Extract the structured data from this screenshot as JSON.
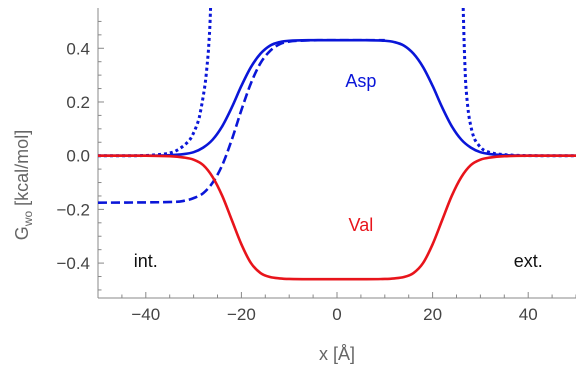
{
  "chart_data": {
    "type": "line",
    "xlabel": "x [Å]",
    "ylabel_main": "G",
    "ylabel_sub": "wo",
    "ylabel_rest": " [kcal/mol]",
    "xlim": [
      -50,
      50
    ],
    "ylim": [
      -0.53,
      0.55
    ],
    "xticks": [
      -40,
      -20,
      0,
      20,
      40
    ],
    "yticks": [
      -0.4,
      -0.2,
      0.0,
      0.2,
      0.4
    ],
    "ytick_labels": [
      "−0.4",
      "−0.2",
      "0.0",
      "0.2",
      "0.4"
    ],
    "xtick_labels": [
      "−40",
      "−20",
      "0",
      "20",
      "40"
    ],
    "colors": {
      "asp": "#0a16d8",
      "val": "#e8141b",
      "axis": "#888888"
    },
    "series": [
      {
        "key": "asp_solid",
        "style": "solid",
        "color": "#0a16d8",
        "x": [
          -50,
          -40,
          -35,
          -32,
          -30,
          -28,
          -26,
          -24,
          -22,
          -20,
          -18,
          -16,
          -14,
          -12,
          -10,
          -6,
          0,
          6,
          10,
          12,
          14,
          16,
          18,
          20,
          22,
          24,
          26,
          28,
          30,
          32,
          35,
          40,
          50
        ],
        "y": [
          0.0,
          0.0,
          0.002,
          0.006,
          0.013,
          0.03,
          0.06,
          0.11,
          0.18,
          0.26,
          0.33,
          0.38,
          0.41,
          0.423,
          0.428,
          0.43,
          0.43,
          0.43,
          0.428,
          0.423,
          0.41,
          0.38,
          0.33,
          0.26,
          0.18,
          0.11,
          0.06,
          0.03,
          0.013,
          0.006,
          0.002,
          0.0,
          0.0
        ]
      },
      {
        "key": "asp_dashed",
        "style": "dashed",
        "color": "#0a16d8",
        "x": [
          -50,
          -40,
          -34,
          -32,
          -30,
          -28,
          -26,
          -24,
          -22,
          -20,
          -18,
          -16,
          -14,
          -12,
          -10,
          -8,
          -4,
          0,
          4,
          8,
          10
        ],
        "y": [
          -0.175,
          -0.174,
          -0.172,
          -0.168,
          -0.158,
          -0.14,
          -0.1,
          -0.035,
          0.06,
          0.17,
          0.27,
          0.345,
          0.39,
          0.415,
          0.425,
          0.428,
          0.43,
          0.43,
          0.43,
          0.43,
          0.43
        ]
      },
      {
        "key": "asp_dotted_left",
        "style": "dotted",
        "color": "#0a16d8",
        "x": [
          -50,
          -42,
          -38,
          -35,
          -33,
          -31,
          -30,
          -29,
          -28.5,
          -28,
          -27.5,
          -27,
          -26.8,
          -26.6,
          -26.45
        ],
        "y": [
          0.0,
          0.0,
          0.003,
          0.01,
          0.025,
          0.055,
          0.085,
          0.13,
          0.17,
          0.22,
          0.28,
          0.37,
          0.42,
          0.48,
          0.55
        ]
      },
      {
        "key": "asp_dotted_right",
        "style": "dotted",
        "color": "#0a16d8",
        "x": [
          26.4,
          26.6,
          26.8,
          27,
          27.5,
          28,
          28.5,
          29,
          30,
          31,
          33,
          35,
          38,
          42,
          50
        ],
        "y": [
          0.55,
          0.42,
          0.32,
          0.25,
          0.16,
          0.11,
          0.075,
          0.055,
          0.032,
          0.018,
          0.008,
          0.004,
          0.001,
          0.0,
          0.0
        ]
      },
      {
        "key": "val_solid",
        "style": "solid",
        "color": "#e8141b",
        "x": [
          -50,
          -40,
          -35,
          -32,
          -30,
          -28,
          -26,
          -24,
          -22,
          -20,
          -18,
          -16,
          -14,
          -12,
          -10,
          -6,
          0,
          6,
          10,
          12,
          14,
          16,
          18,
          20,
          22,
          24,
          26,
          28,
          30,
          32,
          35,
          40,
          50
        ],
        "y": [
          0.0,
          0.0,
          -0.002,
          -0.007,
          -0.015,
          -0.035,
          -0.08,
          -0.15,
          -0.24,
          -0.33,
          -0.4,
          -0.437,
          -0.452,
          -0.457,
          -0.459,
          -0.46,
          -0.46,
          -0.46,
          -0.459,
          -0.457,
          -0.452,
          -0.437,
          -0.4,
          -0.33,
          -0.24,
          -0.15,
          -0.08,
          -0.035,
          -0.015,
          -0.007,
          -0.002,
          0.0,
          0.0
        ]
      }
    ],
    "annotations": [
      {
        "key": "asp",
        "text": "Asp",
        "x": 5,
        "y": 0.255,
        "color": "#0a16d8"
      },
      {
        "key": "val",
        "text": "Val",
        "x": 5,
        "y": -0.28,
        "color": "#e8141b"
      },
      {
        "key": "int",
        "text": "int.",
        "x": -40,
        "y": -0.415,
        "color": "#111111"
      },
      {
        "key": "ext",
        "text": "ext.",
        "x": 40,
        "y": -0.415,
        "color": "#111111"
      }
    ]
  }
}
